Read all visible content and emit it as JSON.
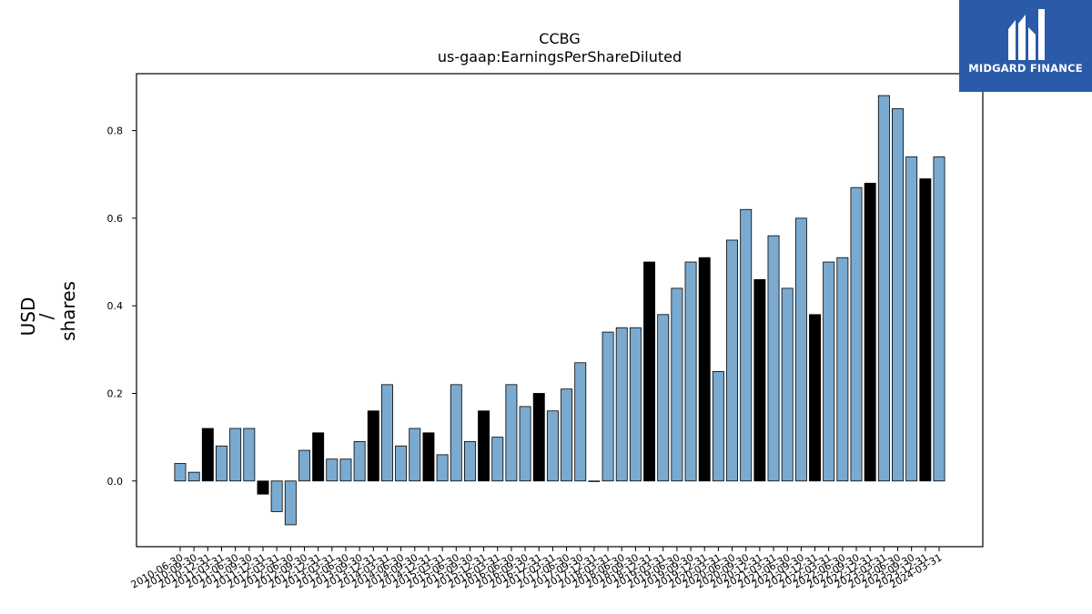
{
  "brand": {
    "name": "MIDGARD FINANCE",
    "icon": "midgard-m-logo-icon"
  },
  "chart_data": {
    "type": "bar",
    "title": "CCBG",
    "subtitle": "us-gaap:EarningsPerShareDiluted",
    "ylabel_lines": [
      "USD",
      "/",
      "shares"
    ],
    "ylim": [
      -0.15,
      0.93
    ],
    "yticks": [
      0.0,
      0.2,
      0.4,
      0.6,
      0.8
    ],
    "ytick_labels": [
      "0.0",
      "0.2",
      "0.4",
      "0.6",
      "0.8"
    ],
    "colors": {
      "quarter": "#7aaad0",
      "annual": "#000000"
    },
    "categories": [
      "2010-06-30",
      "2010-09-30",
      "2010-12-31",
      "2011-03-31",
      "2011-06-30",
      "2011-09-30",
      "2011-12-31",
      "2012-03-31",
      "2012-06-30",
      "2012-09-30",
      "2012-12-31",
      "2013-03-31",
      "2013-06-30",
      "2013-09-30",
      "2013-12-31",
      "2014-03-31",
      "2014-06-30",
      "2014-09-30",
      "2014-12-31",
      "2015-03-31",
      "2015-06-30",
      "2015-09-30",
      "2015-12-31",
      "2016-03-31",
      "2016-06-30",
      "2016-09-30",
      "2016-12-31",
      "2017-03-31",
      "2017-06-30",
      "2017-09-30",
      "2017-12-31",
      "2018-03-31",
      "2018-06-30",
      "2018-09-30",
      "2018-12-31",
      "2019-03-31",
      "2019-06-30",
      "2019-09-30",
      "2019-12-31",
      "2020-03-31",
      "2020-06-30",
      "2020-09-30",
      "2020-12-31",
      "2021-03-31",
      "2021-06-30",
      "2021-09-30",
      "2021-12-31",
      "2022-03-31",
      "2022-06-30",
      "2022-09-30",
      "2022-12-31",
      "2023-03-31",
      "2023-06-30",
      "2023-09-30",
      "2023-12-31",
      "2024-03-31"
    ],
    "values": [
      0.04,
      0.02,
      0.12,
      0.08,
      0.12,
      0.12,
      -0.03,
      -0.07,
      -0.1,
      0.07,
      0.11,
      0.05,
      0.05,
      0.09,
      0.16,
      0.22,
      0.08,
      0.12,
      0.11,
      0.06,
      0.22,
      0.09,
      0.16,
      0.1,
      0.22,
      0.17,
      0.2,
      0.16,
      0.21,
      0.27,
      0.0,
      0.34,
      0.35,
      0.35,
      0.5,
      0.38,
      0.44,
      0.5,
      0.51,
      0.25,
      0.55,
      0.62,
      0.46,
      0.56,
      0.44,
      0.6,
      0.38,
      0.5,
      0.51,
      0.67,
      0.68,
      0.88,
      0.85,
      0.74,
      0.69,
      0.74
    ],
    "annual_flags": [
      0,
      0,
      1,
      0,
      0,
      0,
      1,
      0,
      0,
      0,
      1,
      0,
      0,
      0,
      1,
      0,
      0,
      0,
      1,
      0,
      0,
      0,
      1,
      0,
      0,
      0,
      1,
      0,
      0,
      0,
      1,
      0,
      0,
      0,
      1,
      0,
      0,
      0,
      1,
      0,
      0,
      0,
      1,
      0,
      0,
      0,
      1,
      0,
      0,
      0,
      1,
      0,
      0,
      0,
      1,
      0
    ],
    "legend": "none",
    "grid": false
  }
}
